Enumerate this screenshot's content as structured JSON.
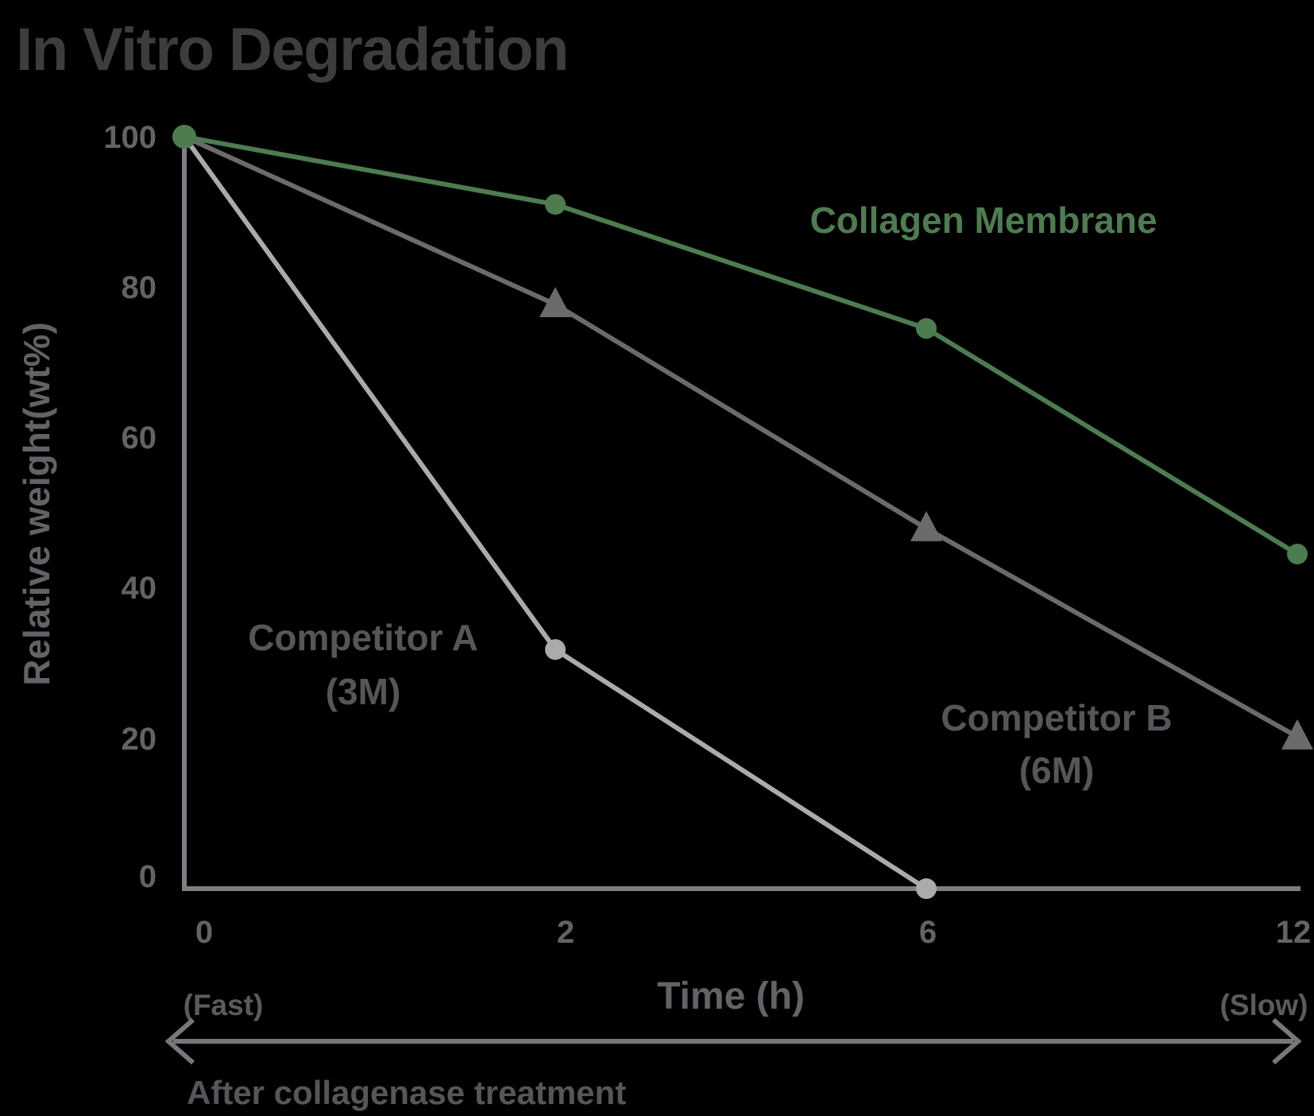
{
  "title": "In Vitro Degradation",
  "colors": {
    "background": "#000000",
    "title_text": "#3c3d3f",
    "axis": "#7e7f82",
    "tick_text": "#626366",
    "xlabel_text": "#626366",
    "annotation_text": "#55565a",
    "fast_slow_text": "#5a5b5e",
    "arrow": "#77787b",
    "collagen_green": "#4d7c50",
    "competitor_a_gray": "#a9abad",
    "competitor_b_gray": "#6a6b6d"
  },
  "chart_data": {
    "type": "line",
    "title": "In Vitro Degradation",
    "xlabel": "Time (h)",
    "ylabel": "Relative weight(wt%)",
    "categories": [
      0,
      2,
      6,
      12
    ],
    "xtick_labels": [
      "0",
      "2",
      "6",
      "12"
    ],
    "ytick_labels": [
      "100",
      "80",
      "60",
      "40",
      "20",
      "0"
    ],
    "ytick_values": [
      100,
      80,
      60,
      40,
      20,
      0
    ],
    "ylim": [
      0,
      100
    ],
    "grid": false,
    "legend_position": "labels-on-plot",
    "series": [
      {
        "id": "competitor_a",
        "name": "Competitor A (3M)",
        "color": "#a9abad",
        "marker": "circle",
        "marker_radius": 13,
        "marker_skip_first": true,
        "line_width": 6,
        "x": [
          0,
          2,
          6
        ],
        "values": [
          100,
          31.8,
          0
        ]
      },
      {
        "id": "competitor_b",
        "name": "Competitor B (6M)",
        "color": "#6a6b6d",
        "marker": "triangle",
        "marker_radius": 13,
        "marker_skip_first": true,
        "line_width": 6,
        "x": [
          0,
          2,
          6,
          12
        ],
        "values": [
          100,
          77.7,
          47.9,
          20.2
        ]
      },
      {
        "id": "collagen",
        "name": "Collagen Membrane",
        "color": "#4d7c50",
        "marker": "circle",
        "marker_radius": 13,
        "start_marker_radius": 15,
        "marker_skip_first": false,
        "line_width": 6,
        "x": [
          0,
          2,
          6,
          12
        ],
        "values": [
          100,
          91,
          74.5,
          44.5
        ]
      }
    ],
    "annotations": {
      "collagen_label": "Collagen Membrane",
      "competitor_a_label": [
        "Competitor A",
        "(3M)"
      ],
      "competitor_b_label": [
        "Competitor B",
        "(6M)"
      ],
      "fast": "(Fast)",
      "slow": "(Slow)",
      "arrow_caption": "After collagenase treatment"
    }
  }
}
